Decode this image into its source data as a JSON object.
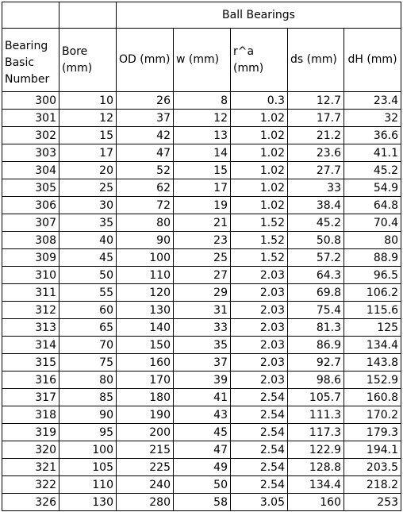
{
  "group_header": "Ball Bearings",
  "headers": [
    "Bearing Basic Number",
    "Bore (mm)",
    "OD (mm)",
    "w (mm)",
    "r^a (mm)",
    "ds (mm)",
    "dH (mm)"
  ],
  "rows": [
    [
      "300",
      "10",
      "26",
      "8",
      "0.3",
      "12.7",
      "23.4"
    ],
    [
      "301",
      "12",
      "37",
      "12",
      "1.02",
      "17.7",
      "32"
    ],
    [
      "302",
      "15",
      "42",
      "13",
      "1.02",
      "21.2",
      "36.6"
    ],
    [
      "303",
      "17",
      "47",
      "14",
      "1.02",
      "23.6",
      "41.1"
    ],
    [
      "304",
      "20",
      "52",
      "15",
      "1.02",
      "27.7",
      "45.2"
    ],
    [
      "305",
      "25",
      "62",
      "17",
      "1.02",
      "33",
      "54.9"
    ],
    [
      "306",
      "30",
      "72",
      "19",
      "1.02",
      "38.4",
      "64.8"
    ],
    [
      "307",
      "35",
      "80",
      "21",
      "1.52",
      "45.2",
      "70.4"
    ],
    [
      "308",
      "40",
      "90",
      "23",
      "1.52",
      "50.8",
      "80"
    ],
    [
      "309",
      "45",
      "100",
      "25",
      "1.52",
      "57.2",
      "88.9"
    ],
    [
      "310",
      "50",
      "110",
      "27",
      "2.03",
      "64.3",
      "96.5"
    ],
    [
      "311",
      "55",
      "120",
      "29",
      "2.03",
      "69.8",
      "106.2"
    ],
    [
      "312",
      "60",
      "130",
      "31",
      "2.03",
      "75.4",
      "115.6"
    ],
    [
      "313",
      "65",
      "140",
      "33",
      "2.03",
      "81.3",
      "125"
    ],
    [
      "314",
      "70",
      "150",
      "35",
      "2.03",
      "86.9",
      "134.4"
    ],
    [
      "315",
      "75",
      "160",
      "37",
      "2.03",
      "92.7",
      "143.8"
    ],
    [
      "316",
      "80",
      "170",
      "39",
      "2.03",
      "98.6",
      "152.9"
    ],
    [
      "317",
      "85",
      "180",
      "41",
      "2.54",
      "105.7",
      "160.8"
    ],
    [
      "318",
      "90",
      "190",
      "43",
      "2.54",
      "111.3",
      "170.2"
    ],
    [
      "319",
      "95",
      "200",
      "45",
      "2.54",
      "117.3",
      "179.3"
    ],
    [
      "320",
      "100",
      "215",
      "47",
      "2.54",
      "122.9",
      "194.1"
    ],
    [
      "321",
      "105",
      "225",
      "49",
      "2.54",
      "128.8",
      "203.5"
    ],
    [
      "322",
      "110",
      "240",
      "50",
      "2.54",
      "134.4",
      "218.2"
    ],
    [
      "326",
      "130",
      "280",
      "58",
      "3.05",
      "160",
      "253"
    ]
  ]
}
